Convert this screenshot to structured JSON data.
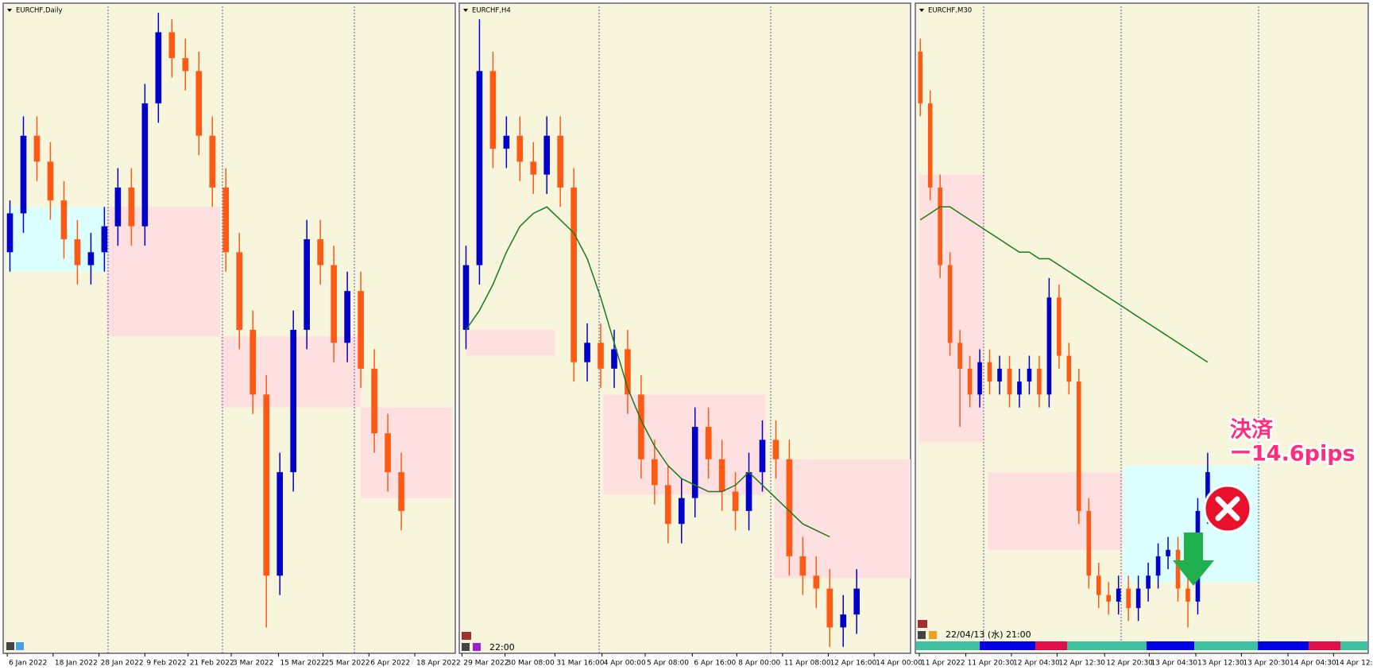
{
  "chart_data": [
    {
      "type": "candlestick",
      "title": "EURCHF,Daily",
      "open": [
        62,
        68,
        80,
        76,
        70,
        64,
        60,
        62,
        66,
        72,
        66,
        85,
        96,
        92,
        90,
        80,
        72,
        62,
        50,
        40,
        12,
        28,
        50,
        64,
        60,
        48,
        56,
        44,
        34,
        28
      ],
      "high": [
        70,
        83,
        83,
        79,
        73,
        67,
        65,
        69,
        75,
        75,
        88,
        99,
        98,
        95,
        93,
        83,
        75,
        65,
        53,
        43,
        31,
        53,
        67,
        67,
        63,
        59,
        59,
        47,
        37,
        31
      ],
      "low": [
        59,
        65,
        73,
        67,
        61,
        57,
        57,
        59,
        63,
        63,
        63,
        82,
        89,
        87,
        77,
        69,
        59,
        47,
        37,
        4,
        9,
        25,
        47,
        57,
        45,
        45,
        41,
        31,
        25,
        19
      ],
      "close": [
        68,
        80,
        76,
        70,
        64,
        60,
        62,
        66,
        72,
        66,
        85,
        96,
        92,
        90,
        80,
        72,
        62,
        50,
        40,
        12,
        28,
        50,
        64,
        60,
        48,
        56,
        44,
        34,
        28,
        22
      ],
      "up_color": "#0000cc",
      "down_color": "#ff5a14",
      "xlim": [
        -0.5,
        33
      ],
      "ylim": [
        0,
        100
      ],
      "xticks": [
        {
          "value": -0.2,
          "label": "6 Jan 2022"
        },
        {
          "value": 3.2,
          "label": "18 Jan 2022"
        },
        {
          "value": 6.6,
          "label": "28 Jan 2022"
        },
        {
          "value": 10,
          "label": "9 Feb 2022"
        },
        {
          "value": 13.2,
          "label": "21 Feb 2022"
        },
        {
          "value": 16.4,
          "label": "3 Mar 2022"
        },
        {
          "value": 19.9,
          "label": "15 Mar 2022"
        },
        {
          "value": 23.2,
          "label": "25 Mar 2022"
        },
        {
          "value": 26.6,
          "label": "6 Apr 2022"
        },
        {
          "value": 30,
          "label": "18 Apr 2022"
        }
      ],
      "zones": [
        {
          "x": [
            -0.2,
            7.2
          ],
          "y": [
            59,
            69
          ],
          "color": "#dcffff"
        },
        {
          "x": [
            7.2,
            15.6
          ],
          "y": [
            49,
            69
          ],
          "color": "#ffe0e0"
        },
        {
          "x": [
            15.6,
            26
          ],
          "y": [
            38,
            49
          ],
          "color": "#ffe0e0"
        },
        {
          "x": [
            26,
            32.8
          ],
          "y": [
            24,
            38
          ],
          "color": "#ffe0e0"
        }
      ]
    },
    {
      "type": "candlestick",
      "title": "EURCHF,H4",
      "open": [
        50,
        60,
        90,
        78,
        80,
        76,
        74,
        80,
        72,
        45,
        48,
        44,
        47,
        40,
        30,
        26,
        20,
        24,
        35,
        30,
        25,
        22,
        28,
        33,
        30,
        15,
        12,
        10,
        4,
        6
      ],
      "high": [
        63,
        98,
        93,
        83,
        83,
        79,
        83,
        83,
        75,
        51,
        51,
        50,
        50,
        43,
        33,
        29,
        27,
        38,
        38,
        33,
        28,
        31,
        36,
        36,
        33,
        18,
        15,
        13,
        9,
        13
      ],
      "low": [
        47,
        57,
        75,
        75,
        73,
        71,
        71,
        69,
        42,
        42,
        41,
        41,
        37,
        27,
        23,
        17,
        17,
        21,
        27,
        22,
        19,
        19,
        25,
        27,
        12,
        9,
        7,
        1,
        1,
        3
      ],
      "close": [
        60,
        90,
        78,
        80,
        76,
        74,
        80,
        72,
        45,
        48,
        44,
        47,
        40,
        30,
        26,
        20,
        24,
        35,
        30,
        25,
        22,
        28,
        33,
        30,
        15,
        12,
        10,
        4,
        6,
        10
      ],
      "ma": [
        50,
        53,
        57,
        62,
        66,
        68,
        69,
        67,
        65,
        61,
        55,
        48,
        41,
        36,
        32,
        29,
        27,
        26,
        25,
        25,
        26,
        28,
        26,
        24,
        22,
        20,
        19,
        18,
        null,
        null
      ],
      "up_color": "#0000cc",
      "down_color": "#ff5a14",
      "ma_color": "#1a7a1a",
      "xlim": [
        -0.5,
        33
      ],
      "ylim": [
        0,
        100
      ],
      "xticks": [
        {
          "value": -0.3,
          "label": "29 Mar 2022"
        },
        {
          "value": 2.9,
          "label": "30 Mar 08:00"
        },
        {
          "value": 6.6,
          "label": "31 Mar 16:00"
        },
        {
          "value": 10.1,
          "label": "4 Apr 00:00"
        },
        {
          "value": 13.3,
          "label": "5 Apr 08:00"
        },
        {
          "value": 16.8,
          "label": "6 Apr 16:00"
        },
        {
          "value": 20.1,
          "label": "8 Apr 00:00"
        },
        {
          "value": 23.5,
          "label": "11 Apr 08:00"
        },
        {
          "value": 26.9,
          "label": "12 Apr 16:00"
        },
        {
          "value": 30.3,
          "label": "14 Apr 00:00"
        }
      ],
      "zones": [
        {
          "x": [
            0,
            6.6
          ],
          "y": [
            46,
            50
          ],
          "color": "#ffe0e0"
        },
        {
          "x": [
            10.2,
            22.2
          ],
          "y": [
            24.5,
            40
          ],
          "color": "#ffe0e0"
        },
        {
          "x": [
            22.9,
            33
          ],
          "y": [
            11.6,
            30
          ],
          "color": "#ffe0e0"
        }
      ],
      "time_label": "22:00"
    },
    {
      "type": "candlestick",
      "title": "EURCHF,M30",
      "open": [
        93,
        85,
        72,
        60,
        48,
        44,
        40,
        45,
        42,
        44,
        40,
        42,
        44,
        40,
        55,
        46,
        42,
        22,
        12,
        9,
        8,
        10,
        7,
        10,
        12,
        15,
        16,
        10,
        8,
        22
      ],
      "high": [
        95,
        87,
        74,
        62,
        50,
        46,
        47,
        47,
        46,
        46,
        44,
        46,
        46,
        58,
        57,
        48,
        44,
        24,
        14,
        11,
        12,
        12,
        12,
        14,
        17,
        18,
        18,
        12,
        24,
        31
      ],
      "low": [
        83,
        70,
        58,
        46,
        35,
        38,
        38,
        40,
        40,
        38,
        38,
        40,
        38,
        38,
        44,
        40,
        20,
        10,
        7,
        6,
        6,
        5,
        5,
        8,
        10,
        13,
        8,
        4,
        6,
        20
      ],
      "close": [
        85,
        72,
        60,
        48,
        44,
        40,
        45,
        42,
        44,
        40,
        42,
        44,
        40,
        55,
        46,
        42,
        22,
        12,
        9,
        8,
        10,
        7,
        10,
        12,
        15,
        16,
        10,
        8,
        22,
        28
      ],
      "ma": [
        67,
        68,
        69,
        69,
        68,
        67,
        66,
        65,
        64,
        63,
        62,
        62,
        61,
        61,
        60,
        59,
        58,
        57,
        56,
        55,
        54,
        53,
        52,
        51,
        50,
        49,
        48,
        47,
        46,
        45
      ],
      "up_color": "#0000cc",
      "down_color": "#ff5a14",
      "ma_color": "#1a7a1a",
      "xlim": [
        -0.5,
        45.2
      ],
      "ylim": [
        0,
        100
      ],
      "xticks": [
        {
          "value": -0.1,
          "label": "11 Apr 2022"
        },
        {
          "value": 4.6,
          "label": "11 Apr 20:30"
        },
        {
          "value": 9.2,
          "label": "12 Apr 04:30"
        },
        {
          "value": 13.8,
          "label": "12 Apr 12:30"
        },
        {
          "value": 18.6,
          "label": "12 Apr 20:30"
        },
        {
          "value": 23.1,
          "label": "13 Apr 04:30"
        },
        {
          "value": 27.8,
          "label": "13 Apr 12:30"
        },
        {
          "value": 32.4,
          "label": "13 Apr 20:30"
        },
        {
          "value": 37.1,
          "label": "14 Apr 04:30"
        },
        {
          "value": 41.7,
          "label": "14 Apr 12:30"
        }
      ],
      "zones": [
        {
          "x": [
            -0.1,
            6.4
          ],
          "y": [
            32.6,
            74
          ],
          "color": "#ffe0e0"
        },
        {
          "x": [
            6.8,
            20.3
          ],
          "y": [
            16,
            28
          ],
          "color": "#ffe0e0"
        },
        {
          "x": [
            20.5,
            34.2
          ],
          "y": [
            11,
            29
          ],
          "color": "#dcffff"
        }
      ],
      "time_label": "22/04/13 (水) 21:00",
      "annotations": [
        "決済",
        "ー14.6pips"
      ]
    }
  ]
}
